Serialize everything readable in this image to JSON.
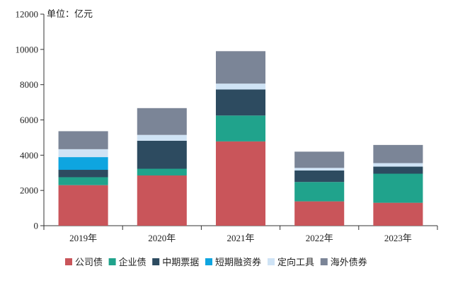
{
  "chart_data": {
    "type": "bar",
    "stacked": true,
    "unit_label": "单位：亿元",
    "categories": [
      "2019年",
      "2020年",
      "2021年",
      "2022年",
      "2023年"
    ],
    "ylim": [
      0,
      12000
    ],
    "yticks": [
      0,
      2000,
      4000,
      6000,
      8000,
      10000,
      12000
    ],
    "grid": false,
    "legend_position": "bottom",
    "series": [
      {
        "name": "公司债",
        "color": "#c9555a",
        "values": [
          2300,
          2850,
          4780,
          1380,
          1300
        ]
      },
      {
        "name": "企业债",
        "color": "#20a38c",
        "values": [
          450,
          380,
          1470,
          1100,
          1650
        ]
      },
      {
        "name": "中期票据",
        "color": "#2d4b60",
        "values": [
          420,
          1590,
          1480,
          650,
          400
        ]
      },
      {
        "name": "短期融资券",
        "color": "#0ea5e0",
        "values": [
          720,
          0,
          0,
          0,
          0
        ]
      },
      {
        "name": "定向工具",
        "color": "#cfe3f5",
        "values": [
          450,
          330,
          330,
          150,
          200
        ]
      },
      {
        "name": "海外债券",
        "color": "#7b8597",
        "values": [
          1020,
          1520,
          1840,
          920,
          1030
        ]
      }
    ]
  }
}
